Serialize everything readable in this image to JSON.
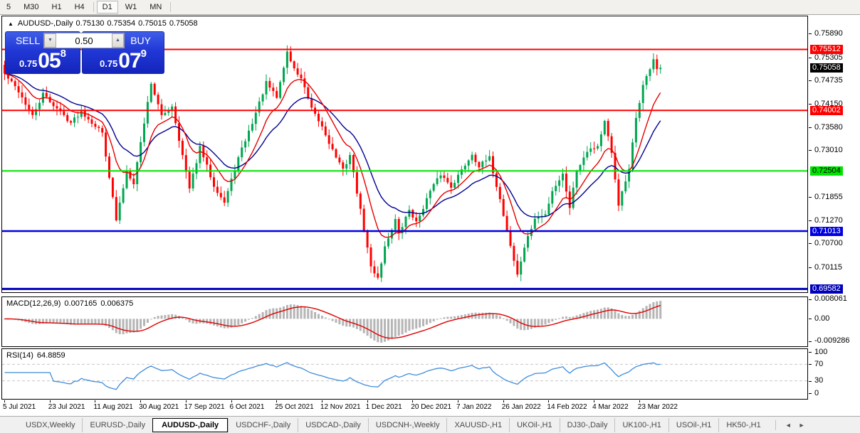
{
  "toolbar": {
    "timeframes": [
      {
        "label": "5",
        "active": false
      },
      {
        "label": "M30",
        "active": false
      },
      {
        "label": "H1",
        "active": false
      },
      {
        "label": "H4",
        "active": false
      },
      {
        "label": "D1",
        "active": true
      },
      {
        "label": "W1",
        "active": false
      },
      {
        "label": "MN",
        "active": false
      }
    ]
  },
  "chart": {
    "header": {
      "collapse_icon": "▲",
      "title": "AUDUSD-,Daily",
      "open": "0.75130",
      "high": "0.75354",
      "low": "0.75015",
      "close": "0.75058"
    },
    "trade_panel": {
      "sell_label": "SELL",
      "buy_label": "BUY",
      "volume": "0.50",
      "decrease_icon": "▼",
      "increase_icon": "▲",
      "sell_price": {
        "prefix": "0.75",
        "big": "05",
        "sup": "8"
      },
      "buy_price": {
        "prefix": "0.75",
        "big": "07",
        "sup": "9"
      }
    },
    "y_axis": {
      "min": 0.695,
      "max": 0.7633,
      "ticks": [
        {
          "label": "0.75890",
          "value": 0.7589
        },
        {
          "label": "0.75305",
          "value": 0.75305
        },
        {
          "label": "0.74735",
          "value": 0.74735
        },
        {
          "label": "0.74150",
          "value": 0.7415
        },
        {
          "label": "0.73580",
          "value": 0.7358
        },
        {
          "label": "0.73010",
          "value": 0.7301
        },
        {
          "label": "0.71855",
          "value": 0.71855
        },
        {
          "label": "0.71270",
          "value": 0.7127
        },
        {
          "label": "0.70700",
          "value": 0.707
        },
        {
          "label": "0.70115",
          "value": 0.70115
        }
      ]
    },
    "levels": [
      {
        "label": "0.75512",
        "value": 0.75512,
        "color": "#ff0000",
        "text_color": "#ffffff",
        "width": 2
      },
      {
        "label": "0.74002",
        "value": 0.74002,
        "color": "#ff0000",
        "text_color": "#ffffff",
        "width": 2
      },
      {
        "label": "0.72504",
        "value": 0.72504,
        "color": "#00e200",
        "text_color": "#000000",
        "width": 2
      },
      {
        "label": "0.71013",
        "value": 0.71013,
        "color": "#0000e0",
        "text_color": "#ffffff",
        "width": 2.5
      },
      {
        "label": "0.69582",
        "value": 0.69582,
        "color": "#0000bb",
        "text_color": "#ffffff",
        "width": 3
      }
    ],
    "current_price": {
      "label": "0.75058",
      "value": 0.75058,
      "bg": "#000000",
      "text_color": "#ffffff"
    },
    "x_axis_labels": [
      "5 Jul 2021",
      "23 Jul 2021",
      "11 Aug 2021",
      "30 Aug 2021",
      "17 Sep 2021",
      "6 Oct 2021",
      "25 Oct 2021",
      "12 Nov 2021",
      "1 Dec 2021",
      "20 Dec 2021",
      "7 Jan 2022",
      "26 Jan 2022",
      "14 Feb 2022",
      "4 Mar 2022",
      "23 Mar 2022"
    ]
  },
  "chart_data": {
    "type": "candlestick",
    "symbol": "AUDUSD-",
    "timeframe": "Daily",
    "n_candles": 189,
    "candles_per_x_label": 13,
    "up_color": "#00a650",
    "down_color": "#ff0000",
    "ma_fast": {
      "period": 10,
      "color": "#e60000"
    },
    "ma_slow": {
      "period": 21,
      "color": "#000090"
    },
    "last_close": 0.75058,
    "close_samples": [
      [
        0,
        0.749
      ],
      [
        4,
        0.7448
      ],
      [
        8,
        0.7385
      ],
      [
        11,
        0.744
      ],
      [
        19,
        0.737
      ],
      [
        22,
        0.7398
      ],
      [
        28,
        0.7345
      ],
      [
        32,
        0.7128
      ],
      [
        35,
        0.725
      ],
      [
        37,
        0.7222
      ],
      [
        42,
        0.7469
      ],
      [
        45,
        0.7385
      ],
      [
        48,
        0.7412
      ],
      [
        53,
        0.7205
      ],
      [
        56,
        0.7308
      ],
      [
        60,
        0.7215
      ],
      [
        63,
        0.7172
      ],
      [
        67,
        0.7282
      ],
      [
        71,
        0.737
      ],
      [
        75,
        0.7468
      ],
      [
        78,
        0.7432
      ],
      [
        81,
        0.7545
      ],
      [
        83,
        0.7502
      ],
      [
        85,
        0.748
      ],
      [
        88,
        0.7402
      ],
      [
        91,
        0.736
      ],
      [
        94,
        0.7302
      ],
      [
        97,
        0.7252
      ],
      [
        99,
        0.729
      ],
      [
        102,
        0.7152
      ],
      [
        105,
        0.7012
      ],
      [
        107,
        0.6987
      ],
      [
        109,
        0.7062
      ],
      [
        112,
        0.713
      ],
      [
        113,
        0.7092
      ],
      [
        116,
        0.7155
      ],
      [
        118,
        0.7122
      ],
      [
        122,
        0.72
      ],
      [
        125,
        0.7242
      ],
      [
        128,
        0.7212
      ],
      [
        131,
        0.7252
      ],
      [
        134,
        0.7292
      ],
      [
        136,
        0.7262
      ],
      [
        139,
        0.7282
      ],
      [
        142,
        0.718
      ],
      [
        144,
        0.7102
      ],
      [
        147,
        0.6992
      ],
      [
        149,
        0.7062
      ],
      [
        152,
        0.7132
      ],
      [
        155,
        0.7142
      ],
      [
        157,
        0.7202
      ],
      [
        160,
        0.7242
      ],
      [
        162,
        0.7162
      ],
      [
        164,
        0.7252
      ],
      [
        167,
        0.7302
      ],
      [
        170,
        0.7312
      ],
      [
        172,
        0.7372
      ],
      [
        174,
        0.7292
      ],
      [
        176,
        0.7168
      ],
      [
        179,
        0.7252
      ],
      [
        181,
        0.7382
      ],
      [
        183,
        0.7462
      ],
      [
        184,
        0.7482
      ],
      [
        186,
        0.7528
      ],
      [
        187,
        0.7502
      ],
      [
        188,
        0.75058
      ]
    ]
  },
  "macd": {
    "label": "MACD(12,26,9)",
    "value_main": "0.007165",
    "value_signal": "0.006375",
    "histogram_color": "#b5b5b5",
    "signal_color": "#e00000",
    "axis_labels": [
      {
        "label": "0.008061",
        "value": 0.008061
      },
      {
        "label": "0.00",
        "value": 0
      },
      {
        "label": "-0.009286",
        "value": -0.009286
      }
    ]
  },
  "rsi": {
    "label": "RSI(14)",
    "value": "64.8859",
    "line_color": "#3f8cdc",
    "level_line_color": "#c8c8c8",
    "levels": [
      70,
      30
    ],
    "axis_labels": [
      {
        "label": "100",
        "value": 100
      },
      {
        "label": "70",
        "value": 70
      },
      {
        "label": "30",
        "value": 30
      },
      {
        "label": "0",
        "value": 0
      }
    ]
  },
  "tabs": {
    "items": [
      {
        "label": "USDX,Weekly",
        "active": false
      },
      {
        "label": "EURUSD-,Daily",
        "active": false
      },
      {
        "label": "AUDUSD-,Daily",
        "active": true
      },
      {
        "label": "USDCHF-,Daily",
        "active": false
      },
      {
        "label": "USDCAD-,Daily",
        "active": false
      },
      {
        "label": "USDCNH-,Weekly",
        "active": false
      },
      {
        "label": "XAUUSD-,H1",
        "active": false
      },
      {
        "label": "UKOil-,H1",
        "active": false
      },
      {
        "label": "DJ30-,Daily",
        "active": false
      },
      {
        "label": "UK100-,H1",
        "active": false
      },
      {
        "label": "USOil-,H1",
        "active": false
      },
      {
        "label": "HK50-,H1",
        "active": false
      }
    ],
    "scroll_left": "◄",
    "scroll_right": "►"
  }
}
